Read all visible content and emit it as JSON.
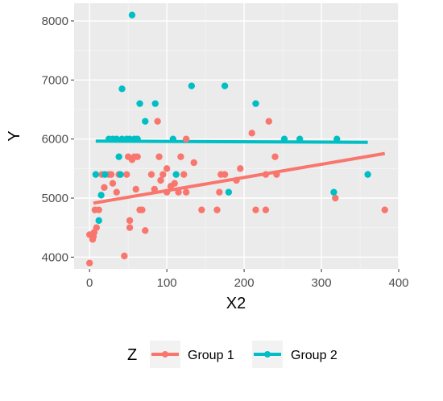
{
  "chart_data": {
    "type": "scatter",
    "xlabel": "X2",
    "ylabel": "Y",
    "xlim": [
      -20,
      400
    ],
    "ylim": [
      3800,
      8300
    ],
    "x_ticks": [
      0,
      100,
      200,
      300,
      400
    ],
    "y_ticks": [
      4000,
      5000,
      6000,
      7000,
      8000
    ],
    "x_tick_labels": [
      "0",
      "100",
      "200",
      "300",
      "400"
    ],
    "y_tick_labels": [
      "4000",
      "5000",
      "6000",
      "7000",
      "8000"
    ],
    "grid": true,
    "legend_title": "Z",
    "legend_position": "bottom",
    "series": [
      {
        "name": "Group 1",
        "color": "#F8766D",
        "points": [
          [
            0,
            3900
          ],
          [
            0,
            4380
          ],
          [
            4,
            4300
          ],
          [
            5,
            4350
          ],
          [
            6,
            4420
          ],
          [
            7,
            4800
          ],
          [
            9,
            4500
          ],
          [
            12,
            4800
          ],
          [
            16,
            5400
          ],
          [
            19,
            5180
          ],
          [
            25,
            5400
          ],
          [
            28,
            5400
          ],
          [
            30,
            5250
          ],
          [
            35,
            5100
          ],
          [
            38,
            5400
          ],
          [
            45,
            4020
          ],
          [
            48,
            5400
          ],
          [
            50,
            5700
          ],
          [
            52,
            4500
          ],
          [
            52,
            4620
          ],
          [
            55,
            5650
          ],
          [
            58,
            5700
          ],
          [
            60,
            5150
          ],
          [
            62,
            5700
          ],
          [
            65,
            4800
          ],
          [
            68,
            4800
          ],
          [
            72,
            4450
          ],
          [
            80,
            5400
          ],
          [
            84,
            5150
          ],
          [
            88,
            6300
          ],
          [
            90,
            5700
          ],
          [
            92,
            5300
          ],
          [
            95,
            5400
          ],
          [
            100,
            5100
          ],
          [
            100,
            5500
          ],
          [
            105,
            5200
          ],
          [
            110,
            5250
          ],
          [
            115,
            5100
          ],
          [
            118,
            5700
          ],
          [
            122,
            5400
          ],
          [
            125,
            5100
          ],
          [
            125,
            6000
          ],
          [
            135,
            5600
          ],
          [
            145,
            4800
          ],
          [
            165,
            4800
          ],
          [
            168,
            5100
          ],
          [
            170,
            5400
          ],
          [
            175,
            5400
          ],
          [
            190,
            5300
          ],
          [
            195,
            5500
          ],
          [
            210,
            6100
          ],
          [
            215,
            4800
          ],
          [
            228,
            5400
          ],
          [
            228,
            4800
          ],
          [
            232,
            6300
          ],
          [
            240,
            5700
          ],
          [
            242,
            5400
          ],
          [
            318,
            5000
          ],
          [
            382,
            4800
          ]
        ],
        "trend": {
          "x": [
            5,
            382
          ],
          "y": [
            4915,
            5755
          ]
        }
      },
      {
        "name": "Group 2",
        "color": "#00BFC4",
        "points": [
          [
            8,
            5400
          ],
          [
            12,
            4620
          ],
          [
            15,
            5050
          ],
          [
            20,
            5400
          ],
          [
            25,
            6000
          ],
          [
            30,
            6000
          ],
          [
            35,
            6000
          ],
          [
            38,
            5700
          ],
          [
            40,
            5400
          ],
          [
            42,
            6000
          ],
          [
            42,
            6850
          ],
          [
            48,
            6000
          ],
          [
            52,
            6000
          ],
          [
            55,
            8100
          ],
          [
            58,
            6000
          ],
          [
            62,
            6000
          ],
          [
            65,
            6600
          ],
          [
            72,
            6300
          ],
          [
            85,
            6600
          ],
          [
            108,
            6000
          ],
          [
            112,
            5400
          ],
          [
            132,
            6900
          ],
          [
            175,
            6900
          ],
          [
            180,
            5100
          ],
          [
            215,
            6600
          ],
          [
            252,
            6000
          ],
          [
            272,
            6000
          ],
          [
            316,
            5100
          ],
          [
            320,
            6000
          ],
          [
            360,
            5400
          ]
        ],
        "trend": {
          "x": [
            8,
            360
          ],
          "y": [
            5965,
            5945
          ]
        }
      }
    ]
  }
}
